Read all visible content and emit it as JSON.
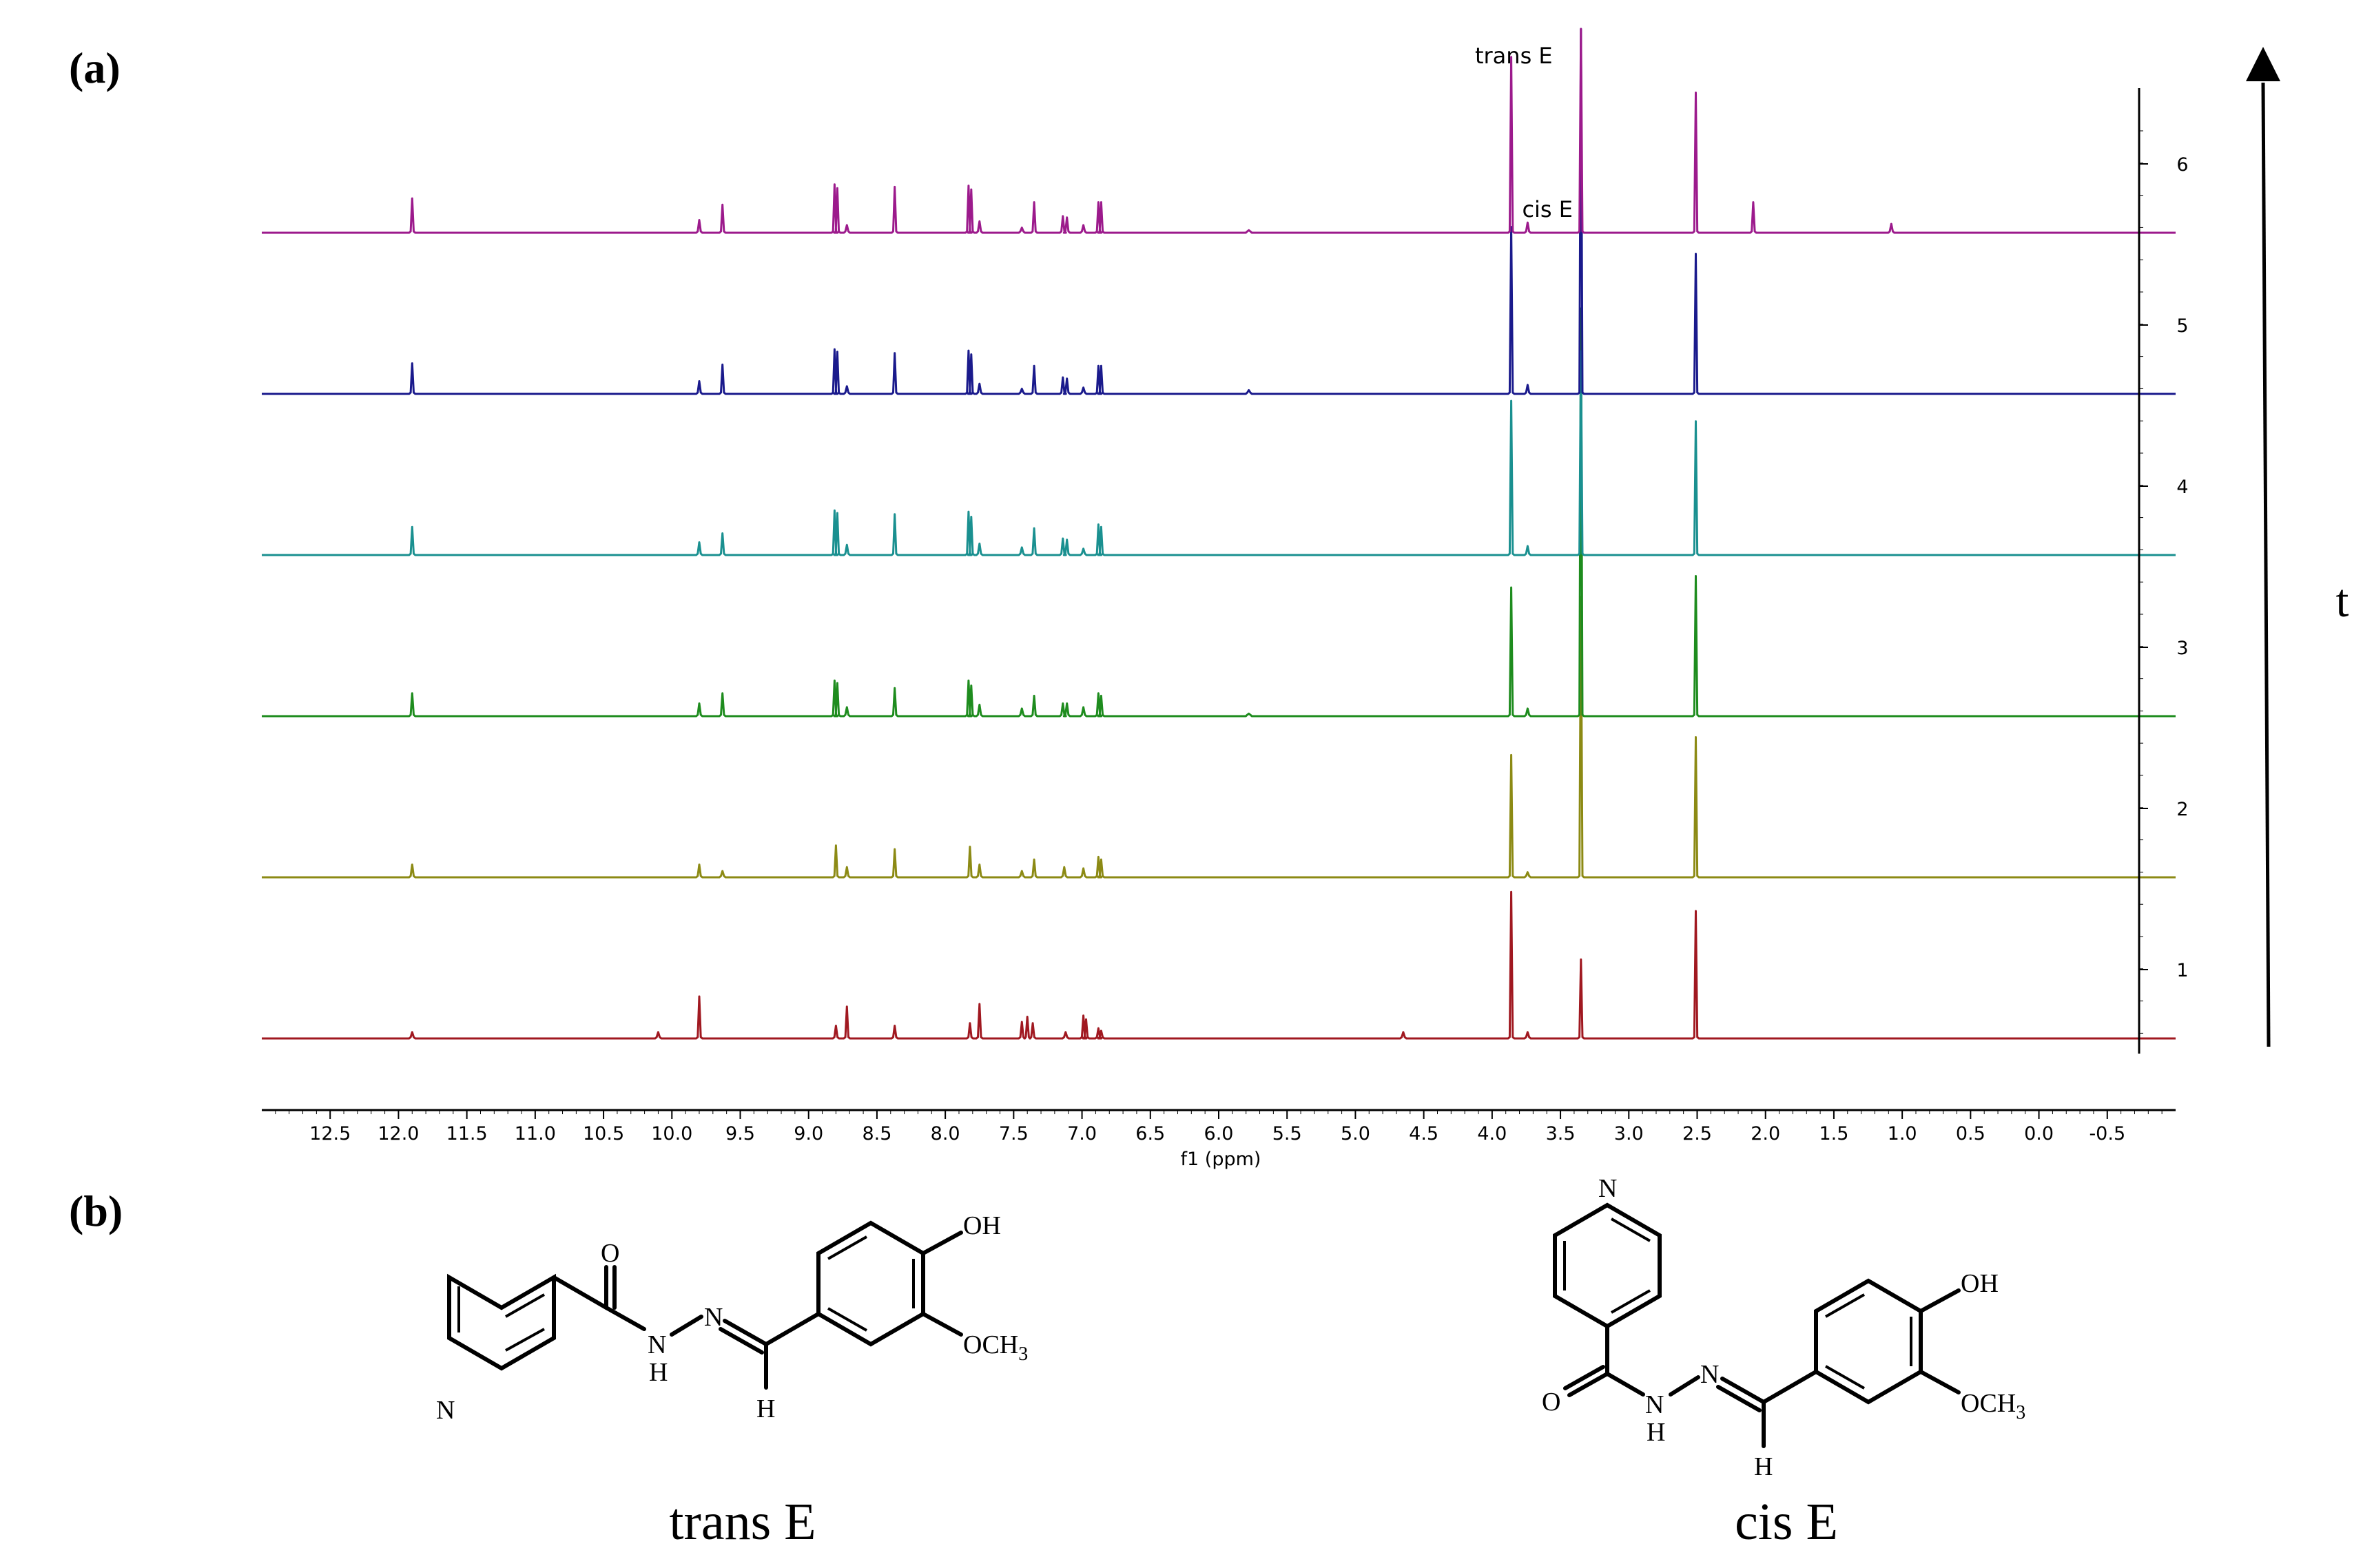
{
  "panels": {
    "a_label": "(a)",
    "b_label": "(b)"
  },
  "chart_data": {
    "type": "line",
    "title": "",
    "xlabel": "f1 (ppm)",
    "xlim": [
      13.0,
      -1.0
    ],
    "x_reversed": true,
    "x_ticks": [
      "12.5",
      "12.0",
      "11.5",
      "11.0",
      "10.5",
      "10.0",
      "9.5",
      "9.0",
      "8.5",
      "8.0",
      "7.5",
      "7.0",
      "6.5",
      "6.0",
      "5.5",
      "5.0",
      "4.5",
      "4.0",
      "3.5",
      "3.0",
      "2.5",
      "2.0",
      "1.5",
      "1.0",
      "0.5",
      "0.0",
      "-0.5"
    ],
    "y_ticks": [
      "1",
      "2",
      "3",
      "4",
      "5",
      "6"
    ],
    "time_axis_label": "t",
    "annotations": [
      {
        "text": "trans E",
        "x": 3.86,
        "series": "6"
      },
      {
        "text": "cis E",
        "x": 3.74,
        "series": "6"
      }
    ],
    "series": [
      {
        "trace": "1",
        "color": "#a01820",
        "peaks": [
          [
            11.9,
            0.05
          ],
          [
            10.1,
            0.05
          ],
          [
            9.8,
            0.33
          ],
          [
            8.8,
            0.1
          ],
          [
            8.72,
            0.25
          ],
          [
            8.37,
            0.1
          ],
          [
            7.82,
            0.12
          ],
          [
            7.75,
            0.27
          ],
          [
            7.44,
            0.13
          ],
          [
            7.4,
            0.17
          ],
          [
            7.36,
            0.12
          ],
          [
            7.12,
            0.05
          ],
          [
            6.99,
            0.18
          ],
          [
            6.97,
            0.15
          ],
          [
            6.88,
            0.08
          ],
          [
            6.86,
            0.06
          ],
          [
            4.65,
            0.05
          ],
          [
            3.86,
            1.15
          ],
          [
            3.74,
            0.05
          ],
          [
            3.35,
            0.62
          ],
          [
            2.51,
            1.0
          ]
        ]
      },
      {
        "trace": "2",
        "color": "#8c8a14",
        "peaks": [
          [
            11.9,
            0.1
          ],
          [
            9.8,
            0.1
          ],
          [
            9.63,
            0.05
          ],
          [
            8.8,
            0.25
          ],
          [
            8.72,
            0.08
          ],
          [
            8.37,
            0.22
          ],
          [
            7.82,
            0.24
          ],
          [
            7.75,
            0.1
          ],
          [
            7.44,
            0.05
          ],
          [
            7.35,
            0.14
          ],
          [
            7.13,
            0.08
          ],
          [
            6.99,
            0.07
          ],
          [
            6.88,
            0.16
          ],
          [
            6.86,
            0.14
          ],
          [
            3.86,
            0.96
          ],
          [
            3.74,
            0.04
          ],
          [
            3.35,
            2.2
          ],
          [
            2.51,
            1.1
          ]
        ]
      },
      {
        "trace": "3",
        "color": "#1e8c1e",
        "peaks": [
          [
            11.9,
            0.18
          ],
          [
            9.8,
            0.1
          ],
          [
            9.63,
            0.18
          ],
          [
            8.81,
            0.28
          ],
          [
            8.79,
            0.26
          ],
          [
            8.72,
            0.07
          ],
          [
            8.37,
            0.22
          ],
          [
            7.83,
            0.28
          ],
          [
            7.81,
            0.24
          ],
          [
            7.75,
            0.09
          ],
          [
            7.44,
            0.06
          ],
          [
            7.35,
            0.16
          ],
          [
            7.14,
            0.1
          ],
          [
            7.11,
            0.1
          ],
          [
            6.99,
            0.07
          ],
          [
            6.88,
            0.18
          ],
          [
            6.86,
            0.16
          ],
          [
            5.78,
            0.02
          ],
          [
            3.86,
            1.01
          ],
          [
            3.74,
            0.06
          ],
          [
            3.35,
            3.2
          ],
          [
            2.51,
            1.1
          ]
        ]
      },
      {
        "trace": "4",
        "color": "#1a9090",
        "peaks": [
          [
            11.9,
            0.22
          ],
          [
            9.8,
            0.1
          ],
          [
            9.63,
            0.17
          ],
          [
            8.81,
            0.35
          ],
          [
            8.79,
            0.33
          ],
          [
            8.72,
            0.08
          ],
          [
            8.37,
            0.32
          ],
          [
            7.83,
            0.34
          ],
          [
            7.81,
            0.3
          ],
          [
            7.75,
            0.09
          ],
          [
            7.44,
            0.06
          ],
          [
            7.35,
            0.21
          ],
          [
            7.14,
            0.13
          ],
          [
            7.11,
            0.12
          ],
          [
            6.99,
            0.05
          ],
          [
            6.88,
            0.24
          ],
          [
            6.86,
            0.22
          ],
          [
            3.86,
            1.21
          ],
          [
            3.74,
            0.07
          ],
          [
            3.35,
            1.6
          ],
          [
            2.51,
            1.05
          ]
        ]
      },
      {
        "trace": "5",
        "color": "#1a1a8c",
        "peaks": [
          [
            11.9,
            0.24
          ],
          [
            9.8,
            0.1
          ],
          [
            9.63,
            0.23
          ],
          [
            8.81,
            0.35
          ],
          [
            8.79,
            0.33
          ],
          [
            8.72,
            0.06
          ],
          [
            8.37,
            0.32
          ],
          [
            7.83,
            0.34
          ],
          [
            7.81,
            0.31
          ],
          [
            7.75,
            0.08
          ],
          [
            7.44,
            0.04
          ],
          [
            7.35,
            0.22
          ],
          [
            7.14,
            0.13
          ],
          [
            7.11,
            0.12
          ],
          [
            6.99,
            0.05
          ],
          [
            6.88,
            0.22
          ],
          [
            6.86,
            0.22
          ],
          [
            5.78,
            0.03
          ],
          [
            3.86,
            1.31
          ],
          [
            3.74,
            0.07
          ],
          [
            3.35,
            3.0
          ],
          [
            2.51,
            1.1
          ]
        ]
      },
      {
        "trace": "6",
        "color": "#9c1a8c",
        "peaks": [
          [
            11.9,
            0.27
          ],
          [
            9.8,
            0.1
          ],
          [
            9.63,
            0.22
          ],
          [
            8.81,
            0.38
          ],
          [
            8.79,
            0.35
          ],
          [
            8.72,
            0.06
          ],
          [
            8.37,
            0.36
          ],
          [
            7.83,
            0.37
          ],
          [
            7.81,
            0.34
          ],
          [
            7.75,
            0.09
          ],
          [
            7.44,
            0.04
          ],
          [
            7.35,
            0.24
          ],
          [
            7.14,
            0.13
          ],
          [
            7.11,
            0.12
          ],
          [
            6.99,
            0.06
          ],
          [
            6.88,
            0.24
          ],
          [
            6.86,
            0.24
          ],
          [
            5.78,
            0.02
          ],
          [
            3.86,
            1.38
          ],
          [
            3.74,
            0.08
          ],
          [
            3.35,
            3.0
          ],
          [
            2.51,
            1.1
          ],
          [
            2.09,
            0.24
          ],
          [
            1.08,
            0.07
          ]
        ]
      }
    ]
  },
  "molecules": [
    {
      "name": "trans E",
      "atoms": {
        "n_ring": "N",
        "o_carbonyl": "O",
        "nh_n": "N",
        "nh_h": "H",
        "imine_n": "N",
        "h": "H",
        "oh": "OH",
        "och3": "OCH",
        "och3_sub": "3"
      }
    },
    {
      "name": "cis E",
      "atoms": {
        "n_ring": "N",
        "o_carbonyl": "O",
        "nh_n": "N",
        "nh_h": "H",
        "imine_n": "N",
        "h": "H",
        "oh": "OH",
        "och3": "OCH",
        "och3_sub": "3"
      }
    }
  ]
}
